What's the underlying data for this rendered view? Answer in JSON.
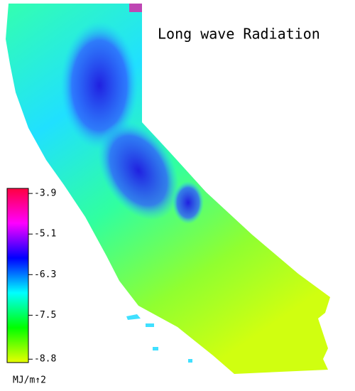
{
  "map": {
    "title": "Long wave Radiation",
    "colorbar": {
      "label": "MJ/m↑2",
      "range": [
        -8.9,
        -3.75
      ],
      "ticks": [
        -3.9,
        -5.1,
        -6.3,
        -7.5,
        -8.8
      ],
      "colors": [
        "#e8ff00",
        "#00ff00",
        "#00ffff",
        "#0000ff",
        "#ff00ff",
        "#ff0040"
      ]
    }
  }
}
